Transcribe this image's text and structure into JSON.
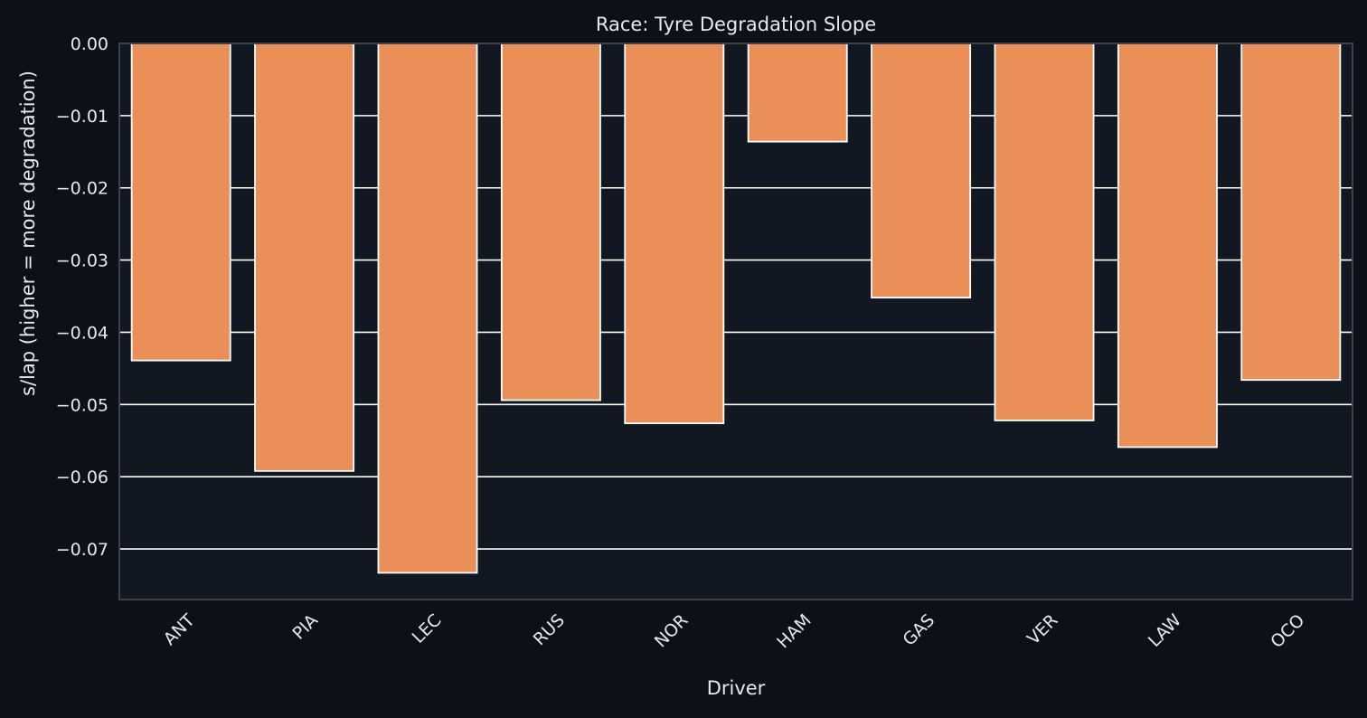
{
  "colors": {
    "page_background": "#0d1017",
    "plot_background": "#121821",
    "bar_fill": "#e98f57",
    "bar_edge": "#ffffff",
    "grid": "#ffffff",
    "axis_frame": "#3b4150",
    "text": "#e6e9ef"
  },
  "chart_data": {
    "type": "bar",
    "title": "Race: Tyre Degradation Slope",
    "xlabel": "Driver",
    "ylabel": "s/lap (higher = more degradation)",
    "categories": [
      "ANT",
      "PIA",
      "LEC",
      "RUS",
      "NOR",
      "HAM",
      "GAS",
      "VER",
      "LAW",
      "OCO"
    ],
    "values": [
      -0.0439,
      -0.0592,
      -0.0733,
      -0.0494,
      -0.0526,
      -0.0136,
      -0.0352,
      -0.0522,
      -0.0559,
      -0.0466
    ],
    "ylim": [
      -0.077,
      0.0
    ],
    "yticks": [
      0.0,
      -0.01,
      -0.02,
      -0.03,
      -0.04,
      -0.05,
      -0.06,
      -0.07
    ],
    "ytick_labels": [
      "0.00",
      "−0.01",
      "−0.02",
      "−0.03",
      "−0.04",
      "−0.05",
      "−0.06",
      "−0.07"
    ],
    "grid": "horizontal",
    "legend": "none"
  }
}
